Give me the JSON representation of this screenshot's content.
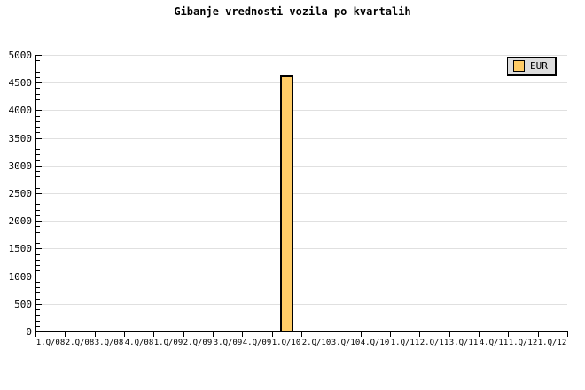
{
  "chart_data": {
    "type": "bar",
    "title": "Gibanje vrednosti vozila po kvartalih",
    "categories": [
      "1.Q/08",
      "2.Q/08",
      "3.Q/08",
      "4.Q/08",
      "1.Q/09",
      "2.Q/09",
      "3.Q/09",
      "4.Q/09",
      "1.Q/10",
      "2.Q/10",
      "3.Q/10",
      "4.Q/10",
      "1.Q/11",
      "2.Q/11",
      "3.Q/11",
      "4.Q/11",
      "1.Q/12",
      "1.Q/12"
    ],
    "series": [
      {
        "name": "EUR",
        "color": "#FFCC66",
        "border_color": "#000000",
        "values": [
          null,
          null,
          null,
          null,
          null,
          null,
          null,
          null,
          4630,
          null,
          null,
          null,
          null,
          null,
          null,
          null,
          null,
          null
        ]
      }
    ],
    "xlabel": "",
    "ylabel": "",
    "ylim": [
      0,
      5000
    ],
    "y_tick_step": 500,
    "y_minor_tick_step": 100,
    "y_tick_labels": [
      "0",
      "500",
      "1000",
      "1500",
      "2000",
      "2500",
      "3000",
      "3500",
      "4000",
      "4500",
      "5000"
    ],
    "grid": "horizontal-major",
    "grid_color": "#E0E0E0",
    "axis_color": "#000000",
    "background_color": "#FFFFFF",
    "legend": {
      "position": "top-right",
      "background": "#DDDDDD",
      "border_color": "#000000",
      "entries": [
        {
          "label": "EUR",
          "swatch_color": "#FFCC66"
        }
      ]
    }
  }
}
